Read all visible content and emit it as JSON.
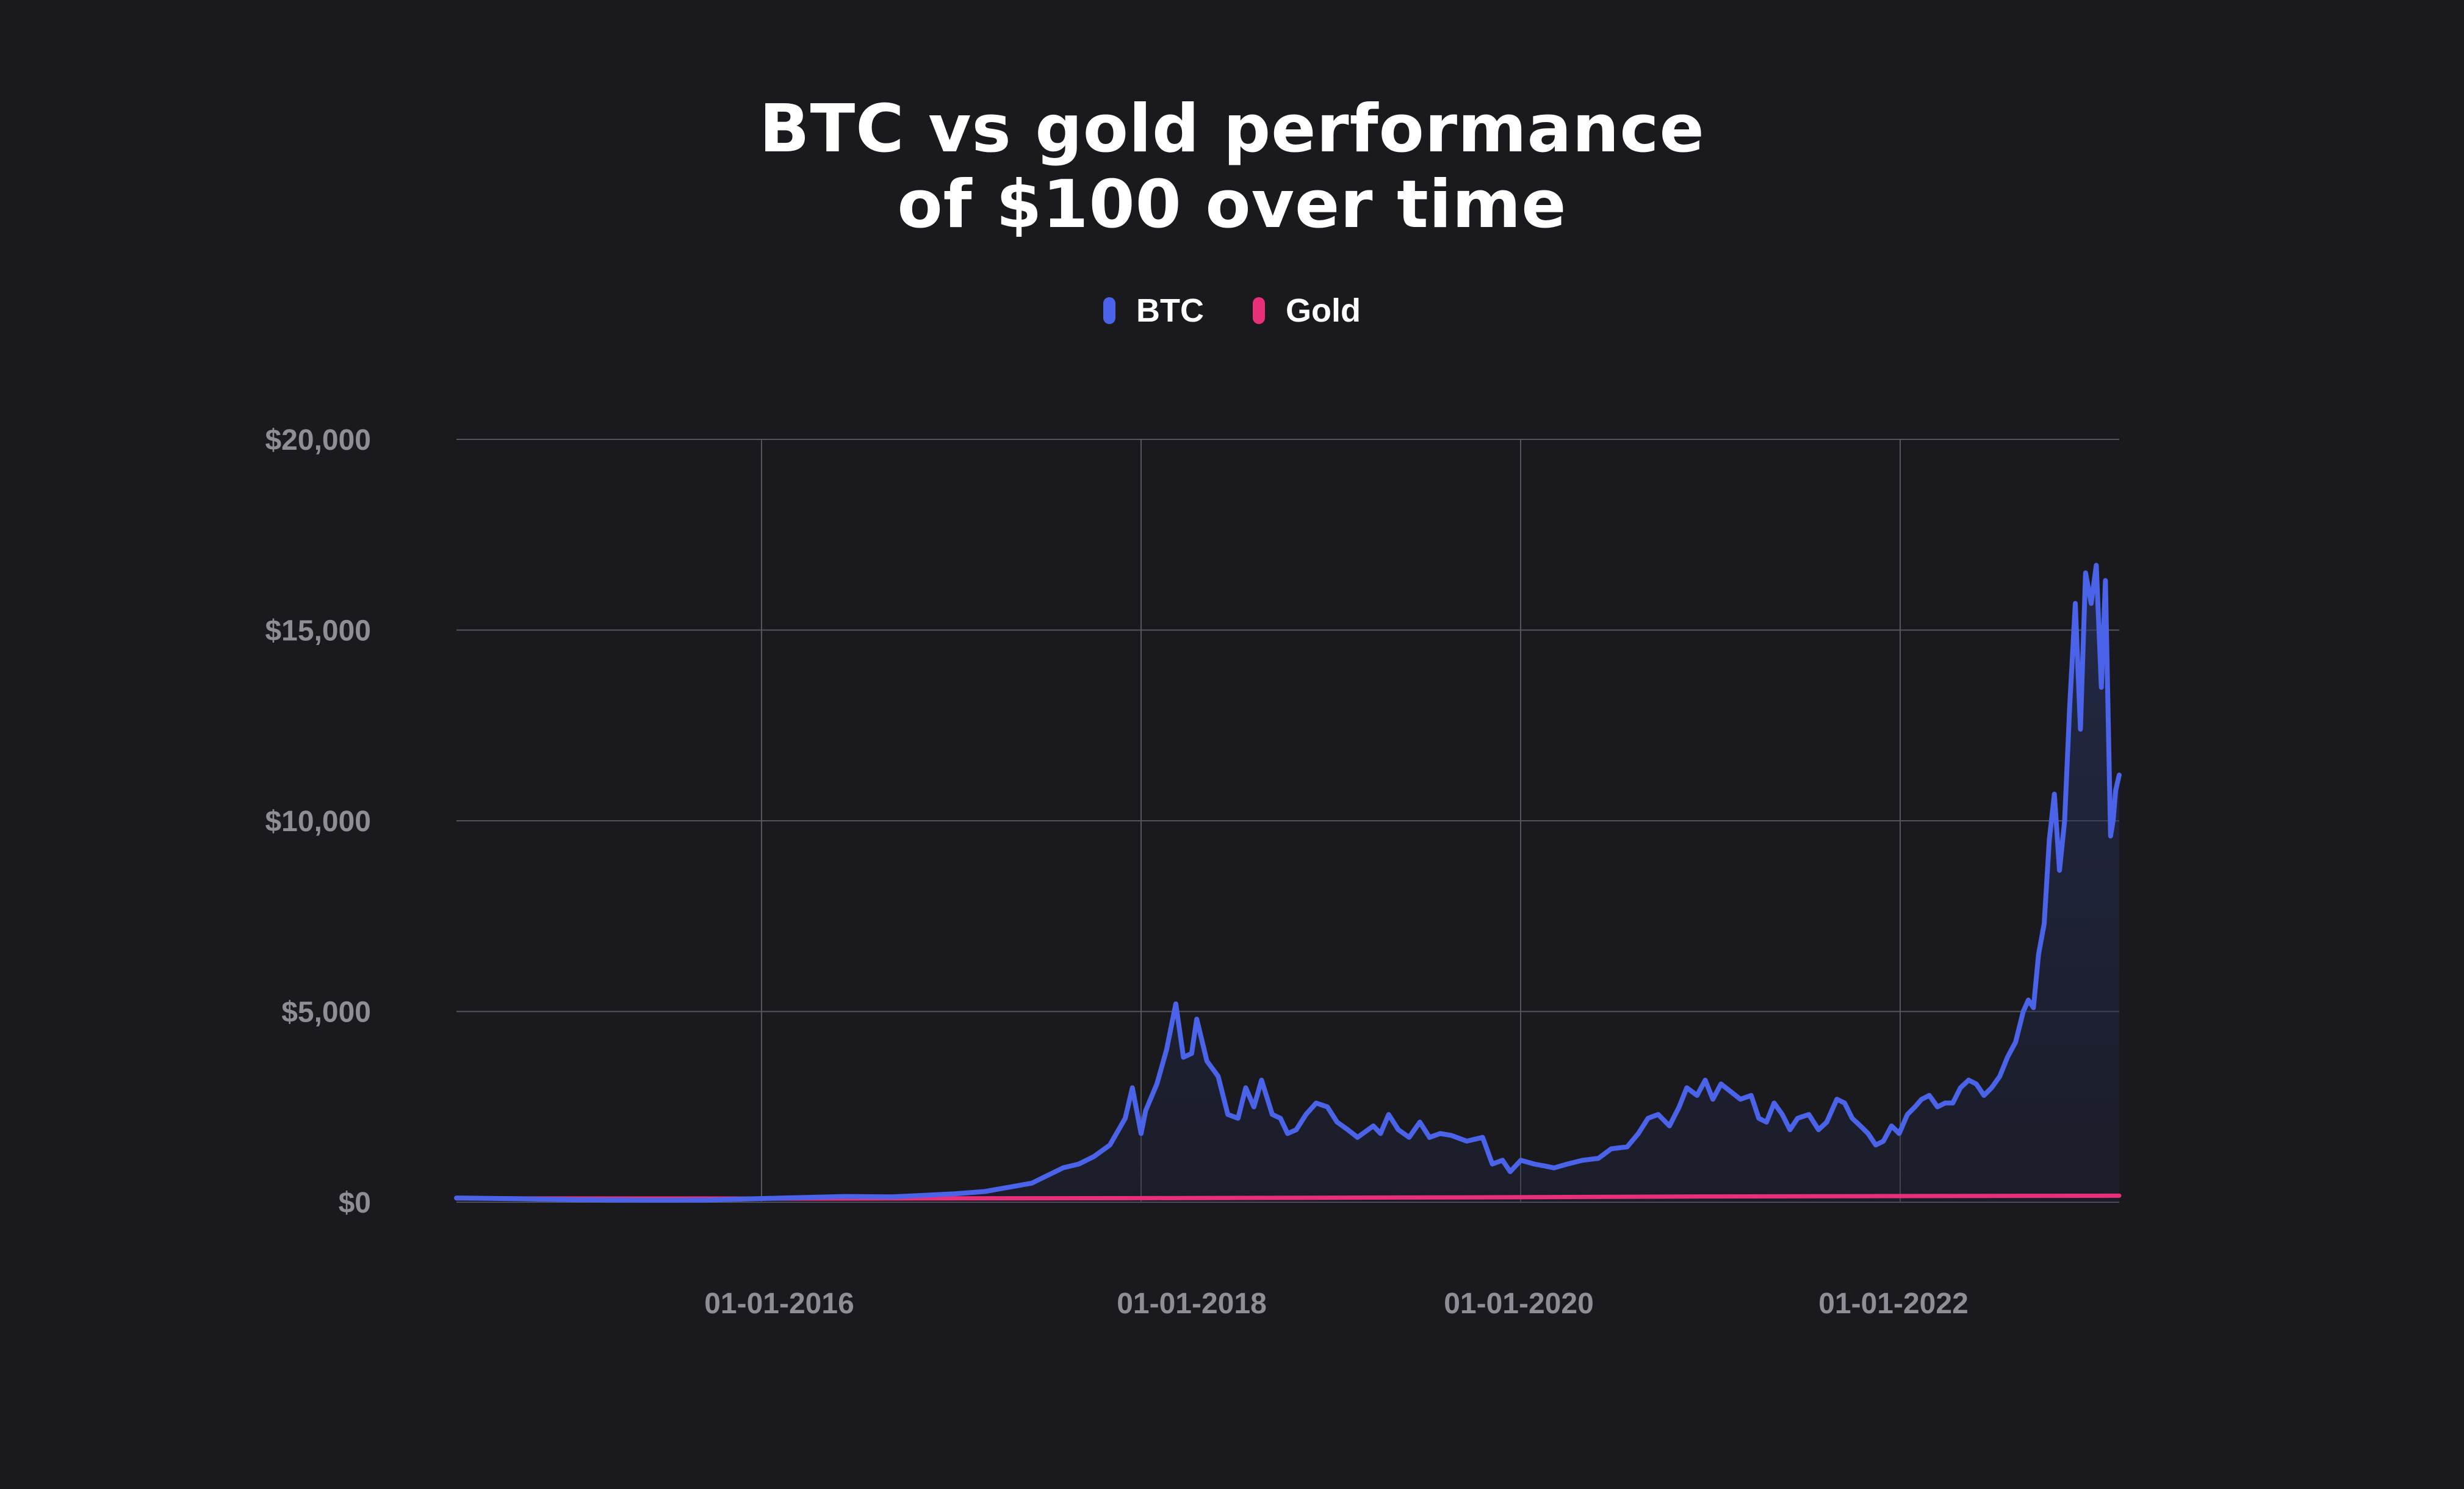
{
  "title_lines": [
    "BTC vs gold performance",
    "of $100 over time"
  ],
  "colors": {
    "background": "#1a1a1e",
    "grid": "#55555c",
    "btc": "#4a63e8",
    "gold": "#e8307a",
    "tick_text": "#8e8e96"
  },
  "chart_data": {
    "type": "line",
    "title": "BTC vs gold performance of $100 over time",
    "xlabel": "",
    "ylabel": "",
    "x_tick_labels": [
      "01-01-2016",
      "01-01-2018",
      "01-01-2020",
      "01-01-2022"
    ],
    "y_tick_labels": [
      "$0",
      "$5,000",
      "$10,000",
      "$15,000",
      "$20,000"
    ],
    "y_ticks": [
      0,
      5000,
      10000,
      15000,
      20000
    ],
    "xlim": [
      "2014-05-01",
      "2023-04-01"
    ],
    "ylim": [
      0,
      20000
    ],
    "grid": true,
    "legend": "top-center",
    "series": [
      {
        "name": "BTC",
        "color": "#4a63e8",
        "area_fill": true,
        "points": [
          [
            "2014-05-01",
            110
          ],
          [
            "2014-09-01",
            90
          ],
          [
            "2015-01-01",
            60
          ],
          [
            "2015-06-01",
            50
          ],
          [
            "2015-09-01",
            55
          ],
          [
            "2016-01-01",
            100
          ],
          [
            "2016-06-01",
            150
          ],
          [
            "2016-09-01",
            140
          ],
          [
            "2017-01-01",
            220
          ],
          [
            "2017-03-01",
            280
          ],
          [
            "2017-06-01",
            500
          ],
          [
            "2017-08-01",
            900
          ],
          [
            "2017-09-01",
            1000
          ],
          [
            "2017-10-01",
            1200
          ],
          [
            "2017-11-01",
            1500
          ],
          [
            "2017-12-01",
            2200
          ],
          [
            "2017-12-15",
            3000
          ],
          [
            "2018-01-01",
            1800
          ],
          [
            "2018-01-10",
            2400
          ],
          [
            "2018-02-01",
            3100
          ],
          [
            "2018-02-20",
            4000
          ],
          [
            "2018-03-10",
            5200
          ],
          [
            "2018-03-25",
            3800
          ],
          [
            "2018-04-10",
            3900
          ],
          [
            "2018-04-20",
            4800
          ],
          [
            "2018-05-10",
            3700
          ],
          [
            "2018-06-01",
            3300
          ],
          [
            "2018-06-20",
            2300
          ],
          [
            "2018-07-10",
            2200
          ],
          [
            "2018-07-25",
            3000
          ],
          [
            "2018-08-10",
            2500
          ],
          [
            "2018-08-25",
            3200
          ],
          [
            "2018-09-15",
            2300
          ],
          [
            "2018-10-01",
            2200
          ],
          [
            "2018-10-15",
            1800
          ],
          [
            "2018-11-01",
            1900
          ],
          [
            "2018-11-20",
            2300
          ],
          [
            "2018-12-10",
            2600
          ],
          [
            "2019-01-01",
            2500
          ],
          [
            "2019-01-20",
            2100
          ],
          [
            "2019-02-10",
            1900
          ],
          [
            "2019-03-01",
            1700
          ],
          [
            "2019-04-01",
            2000
          ],
          [
            "2019-04-15",
            1800
          ],
          [
            "2019-05-01",
            2300
          ],
          [
            "2019-05-20",
            1900
          ],
          [
            "2019-06-10",
            1700
          ],
          [
            "2019-07-01",
            2100
          ],
          [
            "2019-07-20",
            1700
          ],
          [
            "2019-08-10",
            1800
          ],
          [
            "2019-09-01",
            1750
          ],
          [
            "2019-10-01",
            1600
          ],
          [
            "2019-11-01",
            1700
          ],
          [
            "2019-11-20",
            1000
          ],
          [
            "2019-12-10",
            1100
          ],
          [
            "2019-12-25",
            800
          ],
          [
            "2020-01-15",
            1100
          ],
          [
            "2020-02-10",
            1000
          ],
          [
            "2020-03-01",
            950
          ],
          [
            "2020-03-20",
            900
          ],
          [
            "2020-04-15",
            1000
          ],
          [
            "2020-05-15",
            1100
          ],
          [
            "2020-06-15",
            1150
          ],
          [
            "2020-07-10",
            1400
          ],
          [
            "2020-08-10",
            1450
          ],
          [
            "2020-09-01",
            1800
          ],
          [
            "2020-09-20",
            2200
          ],
          [
            "2020-10-10",
            2300
          ],
          [
            "2020-11-01",
            2000
          ],
          [
            "2020-11-20",
            2500
          ],
          [
            "2020-12-05",
            3000
          ],
          [
            "2020-12-25",
            2800
          ],
          [
            "2021-01-10",
            3200
          ],
          [
            "2021-01-25",
            2700
          ],
          [
            "2021-02-10",
            3100
          ],
          [
            "2021-03-01",
            2900
          ],
          [
            "2021-03-20",
            2700
          ],
          [
            "2021-04-10",
            2800
          ],
          [
            "2021-04-25",
            2200
          ],
          [
            "2021-05-10",
            2100
          ],
          [
            "2021-05-25",
            2600
          ],
          [
            "2021-06-10",
            2300
          ],
          [
            "2021-06-25",
            1900
          ],
          [
            "2021-07-10",
            2200
          ],
          [
            "2021-08-01",
            2300
          ],
          [
            "2021-08-20",
            1900
          ],
          [
            "2021-09-05",
            2100
          ],
          [
            "2021-09-25",
            2700
          ],
          [
            "2021-10-10",
            2600
          ],
          [
            "2021-10-25",
            2200
          ],
          [
            "2021-11-10",
            2000
          ],
          [
            "2021-11-25",
            1800
          ],
          [
            "2021-12-10",
            1500
          ],
          [
            "2021-12-25",
            1600
          ],
          [
            "2022-01-10",
            2000
          ],
          [
            "2022-01-25",
            1800
          ],
          [
            "2022-02-10",
            2300
          ],
          [
            "2022-02-25",
            2500
          ],
          [
            "2022-03-10",
            2700
          ],
          [
            "2022-03-25",
            2800
          ],
          [
            "2022-04-10",
            2500
          ],
          [
            "2022-04-25",
            2600
          ],
          [
            "2022-05-10",
            2600
          ],
          [
            "2022-05-25",
            3000
          ],
          [
            "2022-06-10",
            3200
          ],
          [
            "2022-06-25",
            3100
          ],
          [
            "2022-07-10",
            2800
          ],
          [
            "2022-07-25",
            3000
          ],
          [
            "2022-08-10",
            3300
          ],
          [
            "2022-08-25",
            3800
          ],
          [
            "2022-09-10",
            4200
          ],
          [
            "2022-09-25",
            5000
          ],
          [
            "2022-10-05",
            5300
          ],
          [
            "2022-10-15",
            5100
          ],
          [
            "2022-10-25",
            6500
          ],
          [
            "2022-11-05",
            7300
          ],
          [
            "2022-11-15",
            9500
          ],
          [
            "2022-11-25",
            10700
          ],
          [
            "2022-12-05",
            8700
          ],
          [
            "2022-12-15",
            10000
          ],
          [
            "2022-12-25",
            13000
          ],
          [
            "2023-01-05",
            15700
          ],
          [
            "2023-01-15",
            12400
          ],
          [
            "2023-01-25",
            16500
          ],
          [
            "2023-02-05",
            15700
          ],
          [
            "2023-02-15",
            16700
          ],
          [
            "2023-02-25",
            13500
          ],
          [
            "2023-03-05",
            16300
          ],
          [
            "2023-03-15",
            9600
          ],
          [
            "2023-03-20",
            10000
          ],
          [
            "2023-03-25",
            10800
          ],
          [
            "2023-04-01",
            11200
          ]
        ]
      },
      {
        "name": "Gold",
        "color": "#e8307a",
        "area_fill": false,
        "points": [
          [
            "2014-05-01",
            100
          ],
          [
            "2016-01-01",
            95
          ],
          [
            "2018-01-01",
            105
          ],
          [
            "2020-01-01",
            130
          ],
          [
            "2021-01-01",
            150
          ],
          [
            "2022-01-01",
            160
          ],
          [
            "2023-04-01",
            170
          ]
        ]
      }
    ]
  }
}
